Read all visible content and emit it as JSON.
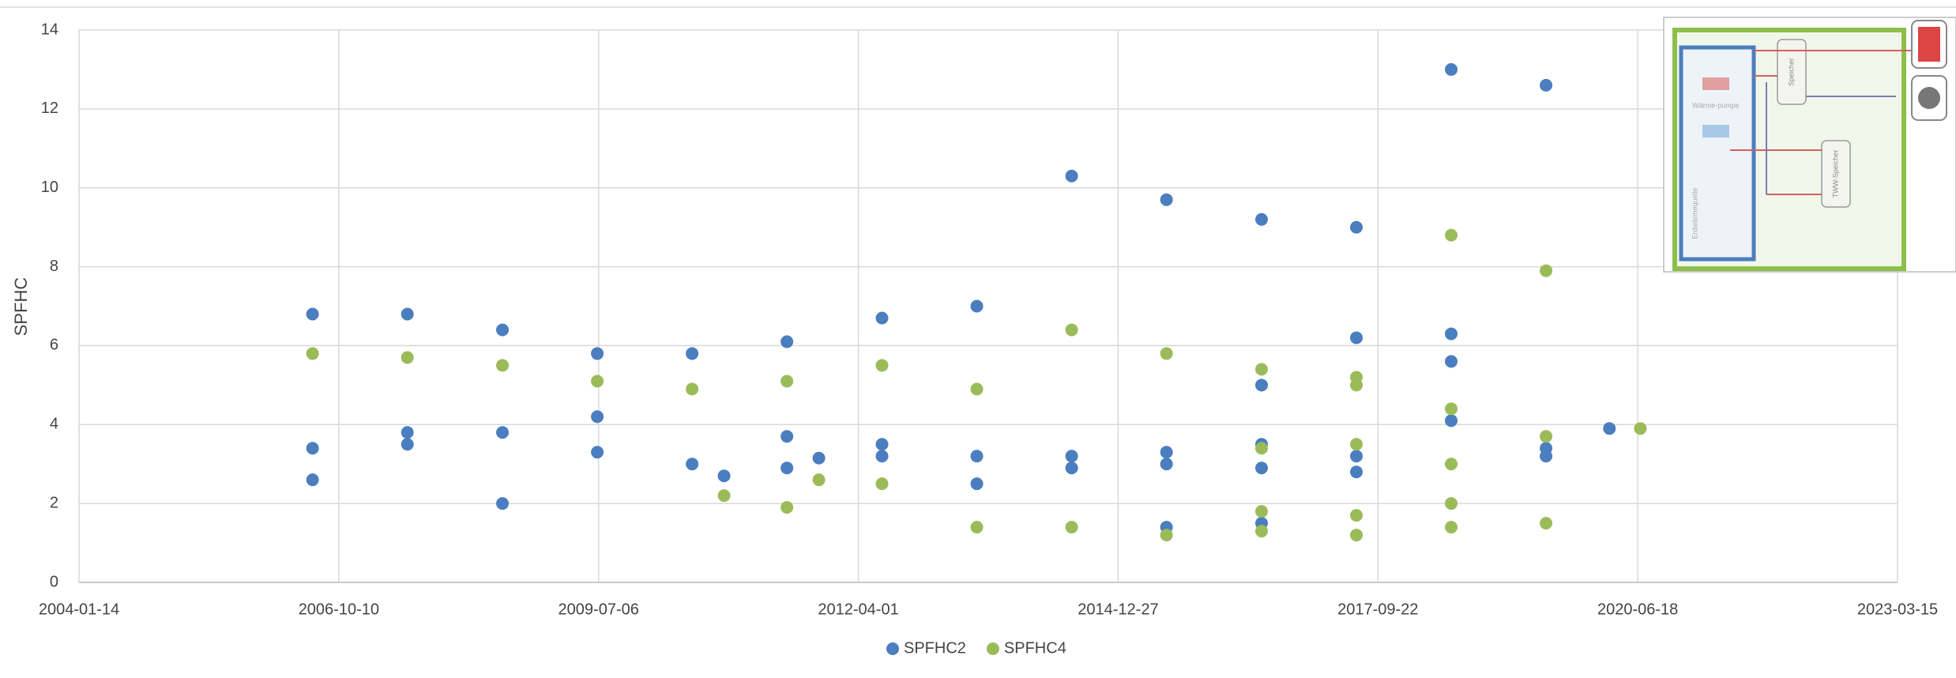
{
  "chart_data": {
    "type": "scatter",
    "y_label": "SPFHC",
    "xlim": [
      "2004-01-14",
      "2023-03-15"
    ],
    "xticks": [
      "2004-01-14",
      "2006-10-10",
      "2009-07-06",
      "2012-04-01",
      "2014-12-27",
      "2017-09-22",
      "2020-06-18",
      "2023-03-15"
    ],
    "ylim": [
      0,
      14
    ],
    "yticks": [
      0,
      2,
      4,
      6,
      8,
      10,
      12,
      14
    ],
    "grid": true,
    "legend": "bottom",
    "series": [
      {
        "name": "SPFHC2",
        "color": "#4a7ebf",
        "x": [
          "2006-07-01",
          "2006-07-01",
          "2006-07-01",
          "2007-07-01",
          "2007-07-01",
          "2007-07-01",
          "2008-07-01",
          "2008-07-01",
          "2008-07-01",
          "2009-07-01",
          "2009-07-01",
          "2009-07-01",
          "2010-07-01",
          "2010-07-01",
          "2010-11-01",
          "2011-07-01",
          "2011-07-01",
          "2011-07-01",
          "2011-11-01",
          "2012-07-01",
          "2012-07-01",
          "2012-07-01",
          "2013-07-01",
          "2013-07-01",
          "2013-07-01",
          "2014-07-01",
          "2014-07-01",
          "2014-07-01",
          "2015-07-01",
          "2015-07-01",
          "2015-07-01",
          "2015-07-01",
          "2016-07-01",
          "2016-07-01",
          "2016-07-01",
          "2016-07-01",
          "2016-07-01",
          "2017-07-01",
          "2017-07-01",
          "2017-07-01",
          "2017-07-01",
          "2018-07-01",
          "2018-07-01",
          "2018-07-01",
          "2018-07-01",
          "2019-07-01",
          "2019-07-01",
          "2019-07-01",
          "2020-03-01"
        ],
        "values": [
          6.8,
          3.4,
          2.6,
          6.8,
          3.8,
          3.5,
          6.4,
          3.8,
          2.0,
          5.8,
          4.2,
          3.3,
          5.8,
          3.0,
          2.7,
          6.1,
          3.7,
          2.9,
          3.15,
          6.7,
          3.5,
          3.2,
          7.0,
          3.2,
          2.5,
          10.3,
          3.2,
          2.9,
          9.7,
          3.3,
          3.0,
          1.4,
          9.2,
          5.0,
          3.5,
          2.9,
          1.5,
          9.0,
          6.2,
          3.2,
          2.8,
          13.0,
          6.3,
          5.6,
          4.1,
          12.6,
          3.4,
          3.2,
          3.9
        ]
      },
      {
        "name": "SPFHC4",
        "color": "#9bbb59",
        "x": [
          "2006-07-01",
          "2007-07-01",
          "2008-07-01",
          "2009-07-01",
          "2010-07-01",
          "2010-11-01",
          "2011-07-01",
          "2011-07-01",
          "2011-11-01",
          "2012-07-01",
          "2012-07-01",
          "2013-07-01",
          "2013-07-01",
          "2014-07-01",
          "2014-07-01",
          "2015-07-01",
          "2015-07-01",
          "2016-07-01",
          "2016-07-01",
          "2016-07-01",
          "2016-07-01",
          "2017-07-01",
          "2017-07-01",
          "2017-07-01",
          "2017-07-01",
          "2017-07-01",
          "2018-07-01",
          "2018-07-01",
          "2018-07-01",
          "2018-07-01",
          "2018-07-01",
          "2019-07-01",
          "2019-07-01",
          "2019-07-01",
          "2020-06-28"
        ],
        "values": [
          5.8,
          5.7,
          5.5,
          5.1,
          4.9,
          2.2,
          5.1,
          1.9,
          2.6,
          5.5,
          2.5,
          4.9,
          1.4,
          6.4,
          1.4,
          5.8,
          1.2,
          5.4,
          3.4,
          1.8,
          1.3,
          5.2,
          5.0,
          3.5,
          1.7,
          1.2,
          8.8,
          4.4,
          3.0,
          2.0,
          1.4,
          7.9,
          3.7,
          1.5,
          3.9
        ]
      }
    ]
  },
  "inset": {
    "labels": [
      "Wärme-pumpe",
      "Speicher",
      "TWW-Speicher",
      "Erdwärmequelle"
    ]
  }
}
